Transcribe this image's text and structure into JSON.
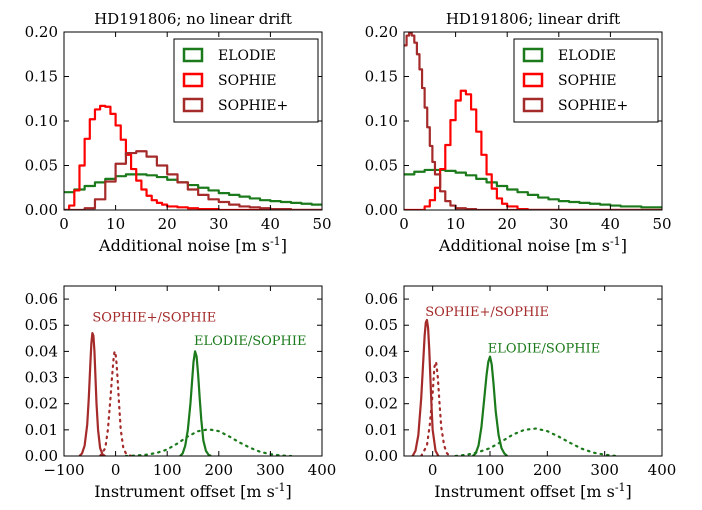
{
  "chart_data": [
    {
      "type": "line",
      "title": "HD191806; no linear drift",
      "xlabel": "Additional noise [m s$^{-1}$]",
      "ylabel": "",
      "xlim": [
        0,
        50
      ],
      "ylim": [
        0,
        0.2
      ],
      "xticks": [
        "0",
        "10",
        "20",
        "30",
        "40",
        "50"
      ],
      "yticks": [
        "0.00",
        "0.05",
        "0.10",
        "0.15",
        "0.20"
      ],
      "step": true,
      "legend": "top-right",
      "series": [
        {
          "name": "ELODIE",
          "color": "#1b7a1b",
          "style": "solid",
          "x": [
            0,
            2,
            4,
            6,
            8,
            10,
            12,
            14,
            16,
            18,
            20,
            22,
            24,
            26,
            28,
            30,
            32,
            34,
            36,
            38,
            40,
            42,
            44,
            46,
            48,
            50
          ],
          "y": [
            0.02,
            0.023,
            0.027,
            0.031,
            0.035,
            0.038,
            0.04,
            0.04,
            0.039,
            0.037,
            0.034,
            0.031,
            0.028,
            0.025,
            0.022,
            0.019,
            0.017,
            0.015,
            0.013,
            0.011,
            0.01,
            0.009,
            0.008,
            0.007,
            0.006,
            0.005
          ]
        },
        {
          "name": "SOPHIE",
          "color": "#ff0000",
          "style": "solid",
          "x": [
            0,
            1,
            2,
            3,
            4,
            5,
            6,
            7,
            8,
            9,
            10,
            11,
            12,
            13,
            14,
            15,
            16,
            17,
            18,
            19,
            20,
            22,
            24,
            26,
            28,
            30,
            35,
            40,
            50
          ],
          "y": [
            0.0,
            0.005,
            0.022,
            0.05,
            0.08,
            0.102,
            0.113,
            0.117,
            0.116,
            0.108,
            0.095,
            0.079,
            0.062,
            0.046,
            0.033,
            0.023,
            0.016,
            0.011,
            0.008,
            0.006,
            0.004,
            0.003,
            0.002,
            0.001,
            0.001,
            0.0,
            0.0,
            0.0,
            0.0
          ]
        },
        {
          "name": "SOPHIE+",
          "color": "#a52a2a",
          "style": "solid",
          "x": [
            0,
            2,
            4,
            6,
            8,
            10,
            12,
            14,
            16,
            18,
            20,
            22,
            24,
            26,
            28,
            30,
            32,
            34,
            36,
            38,
            40,
            42,
            44,
            46,
            48,
            50
          ],
          "y": [
            0.0,
            0.0,
            0.002,
            0.012,
            0.032,
            0.052,
            0.064,
            0.066,
            0.06,
            0.05,
            0.04,
            0.031,
            0.023,
            0.017,
            0.012,
            0.009,
            0.006,
            0.004,
            0.003,
            0.002,
            0.001,
            0.001,
            0.0,
            0.0,
            0.0,
            0.0
          ]
        }
      ]
    },
    {
      "type": "line",
      "title": "HD191806; linear drift",
      "xlabel": "Additional noise [m s$^{-1}$]",
      "ylabel": "",
      "xlim": [
        0,
        50
      ],
      "ylim": [
        0,
        0.2
      ],
      "xticks": [
        "0",
        "10",
        "20",
        "30",
        "40",
        "50"
      ],
      "yticks": [
        "0.00",
        "0.05",
        "0.10",
        "0.15",
        "0.20"
      ],
      "step": true,
      "legend": "top-right",
      "series": [
        {
          "name": "ELODIE",
          "color": "#1b7a1b",
          "style": "solid",
          "x": [
            0,
            2,
            4,
            6,
            8,
            10,
            12,
            14,
            16,
            18,
            20,
            22,
            24,
            26,
            28,
            30,
            32,
            34,
            36,
            38,
            40,
            42,
            44,
            46,
            48,
            50
          ],
          "y": [
            0.04,
            0.043,
            0.045,
            0.045,
            0.044,
            0.042,
            0.039,
            0.035,
            0.031,
            0.027,
            0.023,
            0.02,
            0.017,
            0.014,
            0.012,
            0.01,
            0.009,
            0.008,
            0.007,
            0.006,
            0.005,
            0.004,
            0.004,
            0.003,
            0.003,
            0.002
          ]
        },
        {
          "name": "SOPHIE",
          "color": "#ff0000",
          "style": "solid",
          "x": [
            0,
            2,
            4,
            5,
            6,
            7,
            8,
            9,
            10,
            11,
            12,
            13,
            14,
            15,
            16,
            17,
            18,
            19,
            20,
            22,
            24,
            26,
            30,
            40,
            50
          ],
          "y": [
            0.0,
            0.0,
            0.004,
            0.011,
            0.025,
            0.046,
            0.073,
            0.101,
            0.123,
            0.134,
            0.13,
            0.113,
            0.088,
            0.062,
            0.04,
            0.024,
            0.013,
            0.007,
            0.004,
            0.001,
            0.0,
            0.0,
            0.0,
            0.0,
            0.0
          ]
        },
        {
          "name": "SOPHIE+",
          "color": "#a52a2a",
          "style": "solid",
          "x": [
            0,
            0.5,
            1,
            1.5,
            2,
            2.5,
            3,
            3.5,
            4,
            4.5,
            5,
            5.5,
            6,
            7,
            8,
            9,
            10,
            12,
            14,
            16,
            20,
            30,
            40,
            50
          ],
          "y": [
            0.185,
            0.196,
            0.199,
            0.196,
            0.188,
            0.175,
            0.158,
            0.137,
            0.115,
            0.093,
            0.072,
            0.054,
            0.04,
            0.021,
            0.01,
            0.005,
            0.002,
            0.001,
            0.0,
            0.0,
            0.0,
            0.0,
            0.0,
            0.0
          ]
        }
      ]
    },
    {
      "type": "line",
      "title": "",
      "xlabel": "Instrument offset [m s$^{-1}$]",
      "ylabel": "",
      "xlim": [
        -100,
        400
      ],
      "ylim": [
        0,
        0.065
      ],
      "xticks": [
        "−100",
        "0",
        "100",
        "200",
        "300",
        "400"
      ],
      "yticks": [
        "0.00",
        "0.01",
        "0.02",
        "0.03",
        "0.04",
        "0.05",
        "0.06"
      ],
      "annotations": [
        {
          "text": "SOPHIE+/SOPHIE",
          "x": -45,
          "y": 0.0515,
          "color": "#a52a2a"
        },
        {
          "text": "ELODIE/SOPHIE",
          "x": 152,
          "y": 0.0425,
          "color": "#1b7a1b"
        }
      ],
      "series": [
        {
          "name": "",
          "color": "#a52a2a",
          "style": "solid",
          "x": [
            -70,
            -65,
            -60,
            -55,
            -52,
            -49,
            -47,
            -45,
            -43,
            -41,
            -39,
            -37,
            -34,
            -30,
            -25,
            -20
          ],
          "y": [
            0.0,
            0.001,
            0.004,
            0.012,
            0.022,
            0.035,
            0.043,
            0.047,
            0.046,
            0.04,
            0.03,
            0.02,
            0.01,
            0.003,
            0.0005,
            0.0
          ]
        },
        {
          "name": "",
          "color": "#a52a2a",
          "style": "dotted",
          "x": [
            -30,
            -20,
            -15,
            -10,
            -7,
            -4,
            -2,
            0,
            2,
            4,
            7,
            10,
            15,
            20,
            30
          ],
          "y": [
            0.0,
            0.003,
            0.01,
            0.022,
            0.03,
            0.037,
            0.04,
            0.039,
            0.035,
            0.029,
            0.019,
            0.01,
            0.003,
            0.001,
            0.0
          ]
        },
        {
          "name": "",
          "color": "#1b7a1b",
          "style": "solid",
          "x": [
            125,
            130,
            135,
            140,
            145,
            148,
            151,
            154,
            157,
            160,
            163,
            166,
            170,
            175,
            180,
            185
          ],
          "y": [
            0.0,
            0.001,
            0.004,
            0.01,
            0.02,
            0.028,
            0.036,
            0.04,
            0.038,
            0.031,
            0.022,
            0.014,
            0.006,
            0.002,
            0.0005,
            0.0
          ]
        },
        {
          "name": "",
          "color": "#1b7a1b",
          "style": "dotted",
          "x": [
            20,
            40,
            60,
            80,
            100,
            120,
            140,
            160,
            180,
            200,
            220,
            240,
            260,
            280,
            300,
            320,
            340
          ],
          "y": [
            0.0,
            0.0002,
            0.0005,
            0.0012,
            0.0025,
            0.0048,
            0.0075,
            0.0095,
            0.0102,
            0.0095,
            0.0075,
            0.0052,
            0.0032,
            0.0016,
            0.0007,
            0.0002,
            0.0
          ]
        }
      ]
    },
    {
      "type": "line",
      "title": "",
      "xlabel": "Instrument offset [m s$^{-1}$]",
      "ylabel": "",
      "xlim": [
        -50,
        400
      ],
      "ylim": [
        0,
        0.065
      ],
      "xticks": [
        "0",
        "100",
        "200",
        "300",
        "400"
      ],
      "yticks": [
        "0.00",
        "0.01",
        "0.02",
        "0.03",
        "0.04",
        "0.05",
        "0.06"
      ],
      "annotations": [
        {
          "text": "SOPHIE+/SOPHIE",
          "x": -13,
          "y": 0.0535,
          "color": "#a52a2a"
        },
        {
          "text": "ELODIE/SOPHIE",
          "x": 96,
          "y": 0.0395,
          "color": "#1b7a1b"
        }
      ],
      "series": [
        {
          "name": "",
          "color": "#a52a2a",
          "style": "solid",
          "x": [
            -35,
            -30,
            -25,
            -20,
            -17,
            -14,
            -12,
            -10,
            -8,
            -6,
            -4,
            -2,
            0,
            5,
            10
          ],
          "y": [
            0.0,
            0.002,
            0.008,
            0.022,
            0.034,
            0.046,
            0.051,
            0.052,
            0.049,
            0.041,
            0.03,
            0.019,
            0.01,
            0.002,
            0.0
          ]
        },
        {
          "name": "",
          "color": "#a52a2a",
          "style": "dotted",
          "x": [
            -20,
            -10,
            -5,
            0,
            3,
            6,
            9,
            12,
            15,
            20,
            25,
            30
          ],
          "y": [
            0.0,
            0.004,
            0.012,
            0.024,
            0.034,
            0.036,
            0.03,
            0.02,
            0.011,
            0.004,
            0.001,
            0.0
          ]
        },
        {
          "name": "",
          "color": "#1b7a1b",
          "style": "solid",
          "x": [
            70,
            75,
            80,
            85,
            90,
            94,
            97,
            100,
            103,
            106,
            110,
            115,
            120,
            125,
            130
          ],
          "y": [
            0.0,
            0.001,
            0.004,
            0.011,
            0.022,
            0.031,
            0.036,
            0.038,
            0.035,
            0.028,
            0.017,
            0.008,
            0.003,
            0.001,
            0.0
          ]
        },
        {
          "name": "",
          "color": "#1b7a1b",
          "style": "dotted",
          "x": [
            40,
            60,
            80,
            100,
            120,
            140,
            160,
            180,
            200,
            220,
            240,
            260,
            280,
            300,
            320
          ],
          "y": [
            0.0,
            0.0005,
            0.0015,
            0.003,
            0.0055,
            0.0082,
            0.01,
            0.0105,
            0.0095,
            0.0074,
            0.005,
            0.0028,
            0.0013,
            0.0005,
            0.0
          ]
        }
      ]
    }
  ]
}
